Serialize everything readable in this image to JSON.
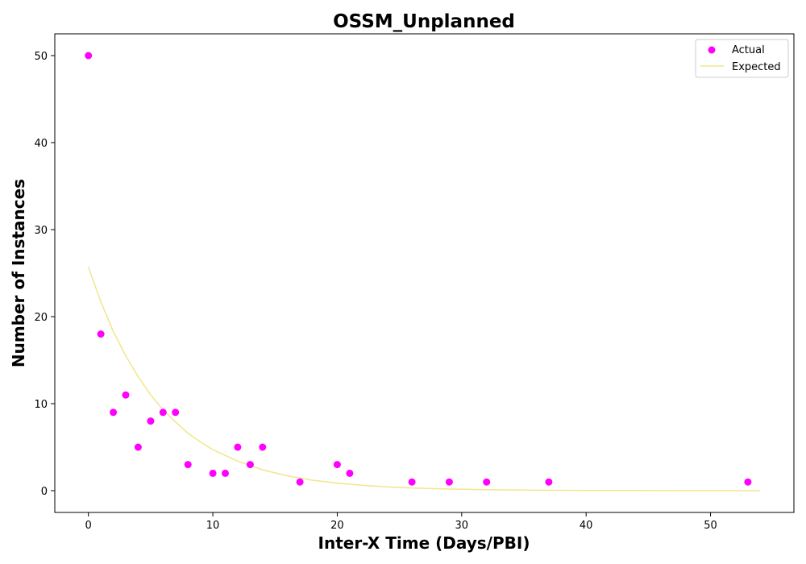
{
  "chart_data": {
    "type": "scatter",
    "title": "OSSM_Unplanned",
    "xlabel": "Inter-X Time (Days/PBI)",
    "ylabel": "Number of Instances",
    "xlim": [
      -2.7,
      56.7
    ],
    "ylim": [
      -2.5,
      52.5
    ],
    "xticks": [
      0,
      10,
      20,
      30,
      40,
      50
    ],
    "yticks": [
      0,
      10,
      20,
      30,
      40,
      50
    ],
    "grid": false,
    "legend": "upper right",
    "series": [
      {
        "name": "Actual",
        "kind": "scatter",
        "color": "#ff00ff",
        "points": [
          {
            "x": 0,
            "y": 50
          },
          {
            "x": 1,
            "y": 18
          },
          {
            "x": 2,
            "y": 9
          },
          {
            "x": 3,
            "y": 11
          },
          {
            "x": 4,
            "y": 5
          },
          {
            "x": 5,
            "y": 8
          },
          {
            "x": 6,
            "y": 9
          },
          {
            "x": 7,
            "y": 9
          },
          {
            "x": 8,
            "y": 3
          },
          {
            "x": 10,
            "y": 2
          },
          {
            "x": 11,
            "y": 2
          },
          {
            "x": 12,
            "y": 5
          },
          {
            "x": 13,
            "y": 3
          },
          {
            "x": 14,
            "y": 5
          },
          {
            "x": 17,
            "y": 1
          },
          {
            "x": 20,
            "y": 3
          },
          {
            "x": 21,
            "y": 2
          },
          {
            "x": 26,
            "y": 1
          },
          {
            "x": 29,
            "y": 1
          },
          {
            "x": 32,
            "y": 1
          },
          {
            "x": 37,
            "y": 1
          },
          {
            "x": 53,
            "y": 1
          }
        ]
      },
      {
        "name": "Expected",
        "kind": "line",
        "color": "#f0e68c",
        "points": [
          {
            "x": 0,
            "y": 25.7
          },
          {
            "x": 1,
            "y": 21.7
          },
          {
            "x": 2,
            "y": 18.3
          },
          {
            "x": 3,
            "y": 15.5
          },
          {
            "x": 4,
            "y": 13.1
          },
          {
            "x": 5,
            "y": 11.0
          },
          {
            "x": 6,
            "y": 9.3
          },
          {
            "x": 7,
            "y": 7.9
          },
          {
            "x": 8,
            "y": 6.6
          },
          {
            "x": 9,
            "y": 5.6
          },
          {
            "x": 10,
            "y": 4.7
          },
          {
            "x": 12,
            "y": 3.4
          },
          {
            "x": 14,
            "y": 2.4
          },
          {
            "x": 16,
            "y": 1.7
          },
          {
            "x": 18,
            "y": 1.2
          },
          {
            "x": 20,
            "y": 0.87
          },
          {
            "x": 22,
            "y": 0.62
          },
          {
            "x": 24,
            "y": 0.44
          },
          {
            "x": 26,
            "y": 0.31
          },
          {
            "x": 28,
            "y": 0.22
          },
          {
            "x": 30,
            "y": 0.16
          },
          {
            "x": 33,
            "y": 0.097
          },
          {
            "x": 36,
            "y": 0.059
          },
          {
            "x": 40,
            "y": 0.03
          },
          {
            "x": 44,
            "y": 0.015
          },
          {
            "x": 48,
            "y": 0.008
          },
          {
            "x": 51,
            "y": 0.005
          },
          {
            "x": 54,
            "y": 0.003
          }
        ]
      }
    ]
  }
}
